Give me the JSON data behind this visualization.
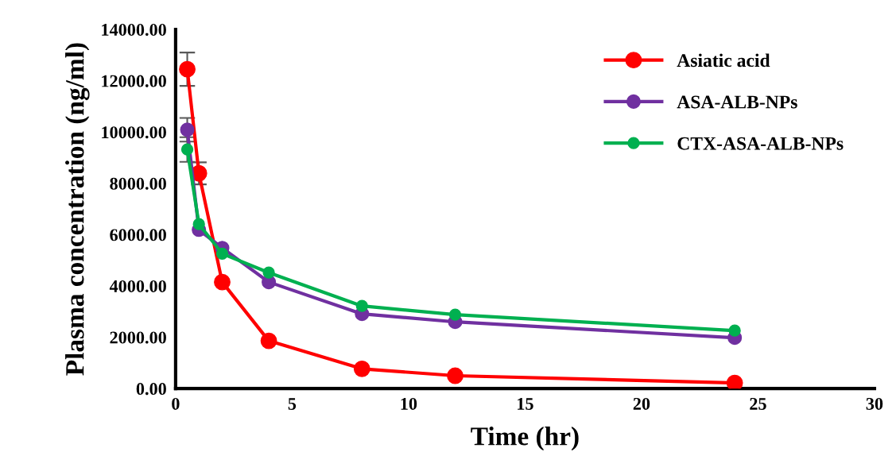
{
  "chart_data": {
    "type": "line",
    "xlabel": "Time (hr)",
    "ylabel": "Plasma concentration (ng/ml)",
    "x": [
      0.5,
      1,
      2,
      4,
      8,
      12,
      24
    ],
    "series": [
      {
        "name": "Asiatic acid",
        "color": "#ff0000",
        "values": [
          12450,
          8390,
          4150,
          1860,
          770,
          500,
          220
        ],
        "errors": [
          650,
          430,
          null,
          null,
          null,
          null,
          null
        ]
      },
      {
        "name": "ASA-ALB-NPs",
        "color": "#7030a0",
        "values": [
          10090,
          6190,
          5480,
          4150,
          2910,
          2600,
          1980
        ],
        "errors": [
          460,
          null,
          null,
          null,
          null,
          null,
          null
        ]
      },
      {
        "name": "CTX-ASA-ALB-NPs",
        "color": "#00b050",
        "values": [
          9320,
          6410,
          5260,
          4520,
          3220,
          2880,
          2260
        ],
        "errors": [
          480,
          null,
          null,
          null,
          null,
          null,
          null
        ]
      }
    ],
    "xlim": [
      0,
      30
    ],
    "xticks": [
      0,
      5,
      10,
      15,
      20,
      25,
      30
    ],
    "ylim": [
      0,
      14000
    ],
    "yticks": [
      {
        "value": 0,
        "label": "0.00"
      },
      {
        "value": 2000,
        "label": "2000.00"
      },
      {
        "value": 4000,
        "label": "4000.00"
      },
      {
        "value": 6000,
        "label": "6000.00"
      },
      {
        "value": 8000,
        "label": "8000.00"
      },
      {
        "value": 10000,
        "label": "10000.00"
      },
      {
        "value": 12000,
        "label": "12000.00"
      },
      {
        "value": 14000,
        "label": "14000.00"
      }
    ],
    "grid": false,
    "legend": "top right",
    "marker": "circle",
    "line_style": "solid"
  }
}
